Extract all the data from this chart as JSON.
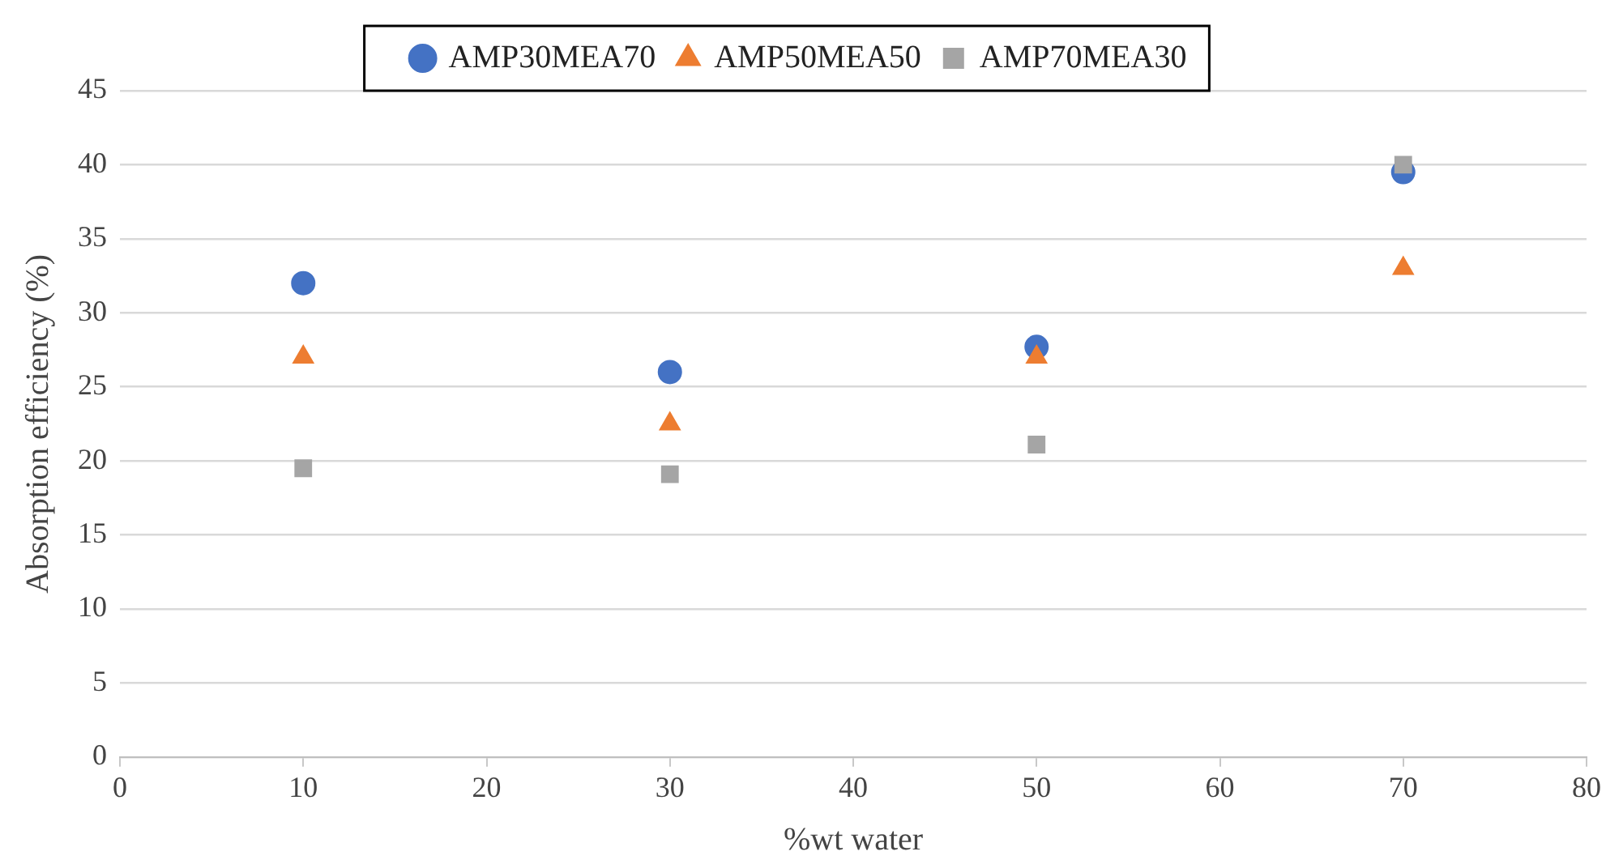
{
  "chart_data": {
    "type": "scatter",
    "xlabel": "%wt water",
    "ylabel": "Absorption efficiency (%)",
    "xlim": [
      0,
      80
    ],
    "xticks": [
      0,
      10,
      20,
      30,
      40,
      50,
      60,
      70,
      80
    ],
    "ylim": [
      0,
      45
    ],
    "yticks": [
      0,
      5,
      10,
      15,
      20,
      25,
      30,
      35,
      40,
      45
    ],
    "grid": "y",
    "legend": "top",
    "series": [
      {
        "name": "AMP30MEA70",
        "color": "#4472c4",
        "marker": "circle",
        "x": [
          10,
          30,
          50,
          70
        ],
        "values": [
          32,
          26,
          27.7,
          39.5
        ]
      },
      {
        "name": "AMP50MEA50",
        "color": "#ed7d31",
        "marker": "triangle",
        "x": [
          10,
          30,
          50,
          70
        ],
        "values": [
          27,
          22.5,
          27,
          33
        ]
      },
      {
        "name": "AMP70MEA30",
        "color": "#a5a5a5",
        "marker": "square",
        "x": [
          10,
          30,
          50,
          70
        ],
        "values": [
          19.5,
          19.1,
          21.1,
          40
        ]
      }
    ]
  }
}
